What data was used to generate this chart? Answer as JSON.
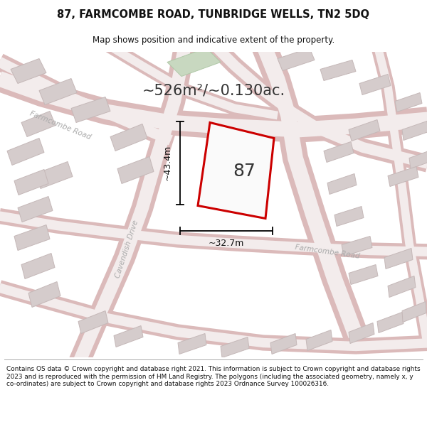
{
  "title_line1": "87, FARMCOMBE ROAD, TUNBRIDGE WELLS, TN2 5DQ",
  "title_line2": "Map shows position and indicative extent of the property.",
  "area_text": "~526m²/~0.130ac.",
  "label_87": "87",
  "label_height": "~43.4m",
  "label_width": "~32.7m",
  "road_label_farmcombe_upper": "Farmcombe Road",
  "road_label_farmcombe_lower": "Farmcombe Road",
  "road_label_cavendish": "Cavendish Drive",
  "footer": "Contains OS data © Crown copyright and database right 2021. This information is subject to Crown copyright and database rights 2023 and is reproduced with the permission of HM Land Registry. The polygons (including the associated geometry, namely x, y co-ordinates) are subject to Crown copyright and database rights 2023 Ordnance Survey 100026316.",
  "map_bg": "#f5efef",
  "road_outer": "#e8c8c8",
  "road_inner": "#f8f0f0",
  "building_fill": "#d8d0d0",
  "building_edge": "#c8b8b8",
  "property_color": "#cc0000",
  "property_fill": "#fafafa",
  "green_fill": "#c8d8c0",
  "green_edge": "#b0c8a8",
  "title_color": "#111111",
  "footer_color": "#111111",
  "road_text_color": "#aaaaaa",
  "annotation_color": "#111111",
  "figsize": [
    6.0,
    6.25
  ],
  "dpi": 100
}
